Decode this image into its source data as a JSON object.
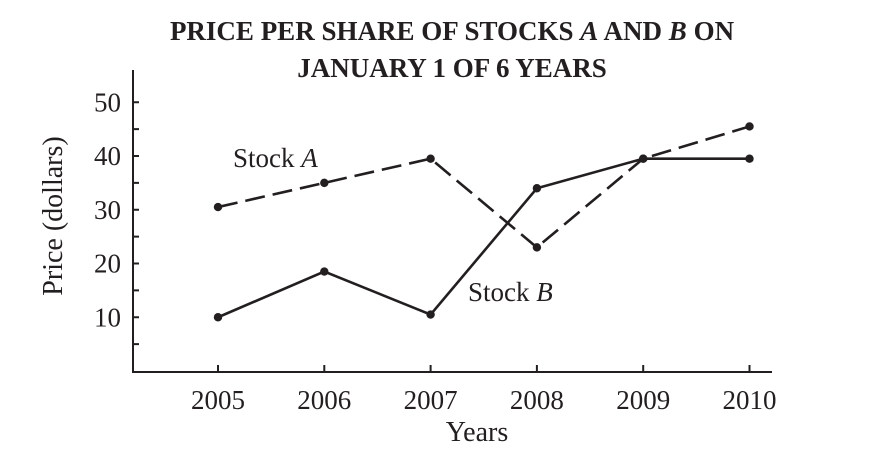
{
  "chart_data": {
    "type": "line",
    "title_line1_prefix": "PRICE PER SHARE OF STOCKS ",
    "title_line1_a": "A",
    "title_line1_mid": " AND ",
    "title_line1_b": "B",
    "title_line1_suffix": " ON",
    "title_line2": "JANUARY 1 OF 6 YEARS",
    "xlabel": "Years",
    "ylabel": "Price (dollars)",
    "categories": [
      "2005",
      "2006",
      "2007",
      "2008",
      "2009",
      "2010"
    ],
    "y_ticks": [
      10,
      20,
      30,
      40,
      50
    ],
    "ylim": [
      0,
      55
    ],
    "series": [
      {
        "name": "Stock A",
        "label_text": "Stock ",
        "label_letter": "A",
        "style": "dashed",
        "values": [
          30.5,
          35,
          39.5,
          23,
          39.5,
          45.5
        ]
      },
      {
        "name": "Stock B",
        "label_text": "Stock ",
        "label_letter": "B",
        "style": "solid",
        "values": [
          10,
          18.5,
          10.5,
          34,
          39.5,
          39.5
        ]
      }
    ],
    "grid": false,
    "legend": "inline labels"
  },
  "colors": {
    "ink": "#231f20",
    "background": "#ffffff"
  }
}
